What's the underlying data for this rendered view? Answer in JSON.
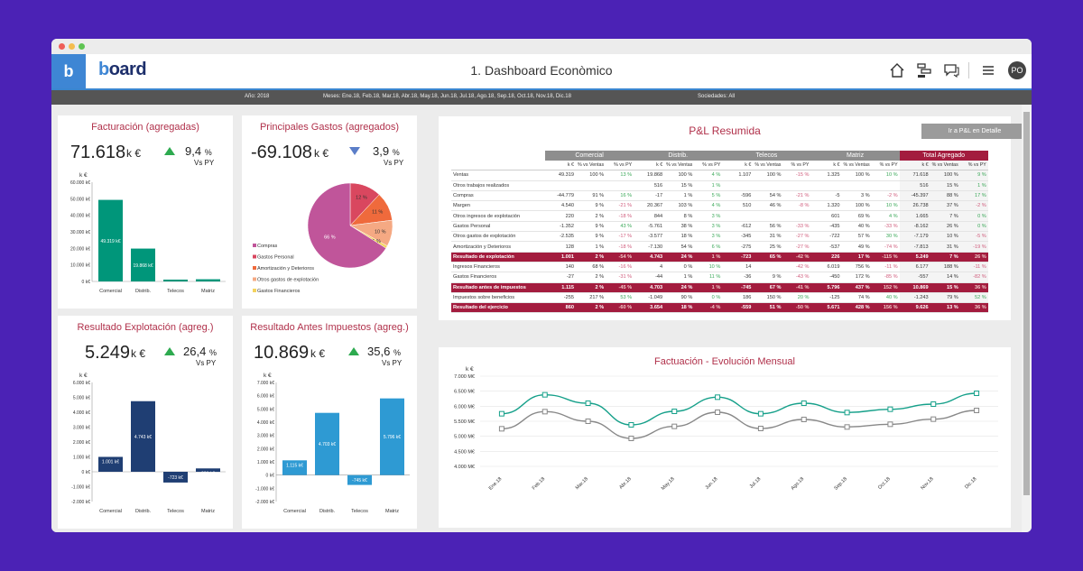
{
  "app": {
    "logo_letter": "b",
    "brand_prefix": "b",
    "brand_rest": "oard",
    "title": "1. Dashboard Econòmico",
    "user_initials": "PO"
  },
  "filters": {
    "year": "Año: 2018",
    "months": "Meses: Ene.18, Feb.18, Mar.18, Abr.18, May.18, Jun.18, Jul.18, Ago.18, Sep.18, Oct.18, Nov.18, Dic.18",
    "companies": "Sociedades: All"
  },
  "colors": {
    "accent": "#3e86d4",
    "title_red": "#b0304a",
    "teal": "#00967a",
    "navy": "#1f3e73",
    "sky": "#2e9ad3",
    "highlight_row": "#a31c3e"
  },
  "kpi1": {
    "title": "Facturación (agregadas)",
    "value": "71.618",
    "unit": "k €",
    "pct": "9,4",
    "pct_sym": "%",
    "vs": "Vs PY",
    "trend": "up"
  },
  "kpi2": {
    "title": "Principales Gastos (agregados)",
    "value": "-69.108",
    "unit": "k €",
    "pct": "3,9",
    "pct_sym": "%",
    "vs": "Vs PY",
    "trend": "down"
  },
  "kpi3": {
    "title": "Resultado Explotación (agreg.)",
    "value": "5.249",
    "unit": "k €",
    "pct": "26,4",
    "pct_sym": "%",
    "vs": "Vs PY",
    "trend": "up"
  },
  "kpi4": {
    "title": "Resultado Antes Impuestos (agreg.)",
    "value": "10.869",
    "unit": "k €",
    "pct": "35,6",
    "pct_sym": "%",
    "vs": "Vs PY",
    "trend": "up"
  },
  "chart_data": [
    {
      "type": "bar",
      "ylabel": "k €",
      "categories": [
        "Comercial",
        "Distrib.",
        "Telecos",
        "Matriz"
      ],
      "values": [
        49319,
        19868,
        1107,
        1325
      ],
      "value_labels": [
        "49.319 k€",
        "19.868 k€",
        "1.107 k€",
        "1.325 k€"
      ],
      "ylim": [
        0,
        60000
      ],
      "yticks": [
        "0 k€",
        "10.000 k€",
        "20.000 k€",
        "30.000 k€",
        "40.000 k€",
        "50.000 k€",
        "60.000 k€"
      ]
    },
    {
      "type": "pie",
      "slices": [
        {
          "label": "Compras",
          "value": 66,
          "text": "66 %",
          "color": "#c0559a"
        },
        {
          "label": "Gastos Personal",
          "value": 12,
          "text": "12 %",
          "color": "#d9475f"
        },
        {
          "label": "Amortización y Deterioros",
          "value": 11,
          "text": "11 %",
          "color": "#ef6a3c"
        },
        {
          "label": "Otros gastos de explotación",
          "value": 10,
          "text": "10 %",
          "color": "#f5a983"
        },
        {
          "label": "Gastos Financieros",
          "value": 1,
          "text": "1 %",
          "color": "#f4d35e"
        }
      ]
    },
    {
      "type": "bar",
      "ylabel": "k €",
      "categories": [
        "Comercial",
        "Distrib.",
        "Telecos",
        "Matriz"
      ],
      "values": [
        1001,
        4743,
        -723,
        226
      ],
      "value_labels": [
        "1.001 k€",
        "4.743 k€",
        "-723 k€",
        "226 k€"
      ],
      "ylim": [
        -2000,
        6000
      ],
      "yticks": [
        "-2.000 k€",
        "-1.000 k€",
        "0 k€",
        "1.000 k€",
        "2.000 k€",
        "3.000 k€",
        "4.000 k€",
        "5.000 k€",
        "6.000 k€"
      ]
    },
    {
      "type": "bar",
      "ylabel": "k €",
      "categories": [
        "Comercial",
        "Distrib.",
        "Telecos",
        "Matriz"
      ],
      "values": [
        1115,
        4703,
        -745,
        5796
      ],
      "value_labels": [
        "1.115 k€",
        "4.703 k€",
        "-745 k€",
        "5.796 k€"
      ],
      "ylim": [
        -2000,
        7000
      ],
      "yticks": [
        "-2.000 k€",
        "-1.000 k€",
        "0 k€",
        "1.000 k€",
        "2.000 k€",
        "3.000 k€",
        "4.000 k€",
        "5.000 k€",
        "6.000 k€",
        "7.000 k€"
      ]
    },
    {
      "type": "line",
      "title": "Factuación - Evolución Mensual",
      "ylabel": "k €",
      "x": [
        "Ene.18",
        "Feb.18",
        "Mar.18",
        "Abr.18",
        "May.18",
        "Jun.18",
        "Jul.18",
        "Ago.18",
        "Sep.18",
        "Oct.18",
        "Nov.18",
        "Dic.18"
      ],
      "ylim": [
        4000,
        7000
      ],
      "yticks": [
        "4.000 M€",
        "4.500 M€",
        "5.000 M€",
        "5.500 M€",
        "6.000 M€",
        "6.500 M€",
        "7.000 M€"
      ],
      "series": [
        {
          "values": [
            5750,
            6380,
            6100,
            5380,
            5830,
            6300,
            5750,
            6100,
            5790,
            5900,
            6070,
            6430
          ],
          "color": "#16a08a"
        },
        {
          "values": [
            5250,
            5820,
            5500,
            4930,
            5330,
            5800,
            5260,
            5560,
            5310,
            5400,
            5570,
            5860
          ],
          "color": "#888888"
        }
      ]
    }
  ],
  "pl": {
    "title": "P&L Resumida",
    "button": "Ir a P&L en Detalle",
    "groups": [
      "Comercial",
      "Distrib.",
      "Telecos",
      "Matriz",
      "Total Agregado"
    ],
    "subheaders": [
      "k €",
      "% vs Ventas",
      "% vs PY"
    ],
    "rows": [
      {
        "label": "Ventas",
        "cells": [
          "49.319",
          "100 %",
          "13 %",
          "19.868",
          "100 %",
          "4 %",
          "1.107",
          "100 %",
          "-15 %",
          "1.325",
          "100 %",
          "10 %",
          "71.618",
          "100 %",
          "9 %"
        ]
      },
      {
        "label": "Otros trabajos realizados",
        "cells": [
          "",
          "",
          "",
          "516",
          "15 %",
          "1 %",
          "",
          "",
          "",
          "",
          "",
          "",
          "516",
          "15 %",
          "1 %"
        ]
      },
      {
        "label": "Compras",
        "cells": [
          "-44.779",
          "91 %",
          "16 %",
          "-17",
          "1 %",
          "5 %",
          "-596",
          "54 %",
          "-21 %",
          "-5",
          "3 %",
          "-2 %",
          "-45.397",
          "88 %",
          "17 %"
        ]
      },
      {
        "label": "Margen",
        "cells": [
          "4.540",
          "9 %",
          "-21 %",
          "20.367",
          "103 %",
          "4 %",
          "510",
          "46 %",
          "-8 %",
          "1.320",
          "100 %",
          "10 %",
          "26.738",
          "37 %",
          "-2 %"
        ]
      },
      {
        "label": "Otros ingresos de explotación",
        "cells": [
          "220",
          "2 %",
          "-18 %",
          "844",
          "8 %",
          "3 %",
          "",
          "",
          "",
          "601",
          "69 %",
          "4 %",
          "1.665",
          "7 %",
          "0 %"
        ]
      },
      {
        "label": "Gastos Personal",
        "cells": [
          "-1.352",
          "9 %",
          "43 %",
          "-5.761",
          "38 %",
          "3 %",
          "-612",
          "56 %",
          "-33 %",
          "-435",
          "40 %",
          "-33 %",
          "-8.162",
          "26 %",
          "0 %"
        ]
      },
      {
        "label": "Otros gastos de explotación",
        "cells": [
          "-2.535",
          "9 %",
          "-17 %",
          "-3.577",
          "18 %",
          "3 %",
          "-345",
          "31 %",
          "-27 %",
          "-722",
          "57 %",
          "30 %",
          "-7.179",
          "10 %",
          "-5 %"
        ]
      },
      {
        "label": "Amortización y Deterioros",
        "cells": [
          "128",
          "1 %",
          "-18 %",
          "-7.130",
          "54 %",
          "6 %",
          "-275",
          "25 %",
          "-27 %",
          "-537",
          "49 %",
          "-74 %",
          "-7.813",
          "31 %",
          "-19 %"
        ]
      },
      {
        "label": "Resultado de explotación",
        "hl": true,
        "cells": [
          "1.001",
          "2 %",
          "-54 %",
          "4.743",
          "24 %",
          "1 %",
          "-723",
          "65 %",
          "-42 %",
          "226",
          "17 %",
          "-115 %",
          "5.249",
          "7 %",
          "26 %"
        ]
      },
      {
        "label": "Ingresos Financieros",
        "cells": [
          "140",
          "68 %",
          "-16 %",
          "4",
          "0 %",
          "10 %",
          "14",
          "",
          "-42 %",
          "6.019",
          "756 %",
          "-11 %",
          "6.177",
          "188 %",
          "-11 %"
        ]
      },
      {
        "label": "Gastos Financieros",
        "cells": [
          "-27",
          "2 %",
          "-31 %",
          "-44",
          "1 %",
          "11 %",
          "-36",
          "9 %",
          "-43 %",
          "-450",
          "172 %",
          "-85 %",
          "-557",
          "14 %",
          "-82 %"
        ]
      },
      {
        "label": "Resultado antes de impuestos",
        "hl": true,
        "cells": [
          "1.115",
          "2 %",
          "-45 %",
          "4.703",
          "24 %",
          "1 %",
          "-745",
          "67 %",
          "-41 %",
          "5.796",
          "437 %",
          "152 %",
          "10.869",
          "15 %",
          "36 %"
        ]
      },
      {
        "label": "Impuestos sobre beneficios",
        "cells": [
          "-255",
          "217 %",
          "53 %",
          "-1.049",
          "90 %",
          "0 %",
          "186",
          "150 %",
          "20 %",
          "-125",
          "74 %",
          "40 %",
          "-1.243",
          "79 %",
          "52 %"
        ]
      },
      {
        "label": "Resultado del ejercicio",
        "hl": true,
        "cells": [
          "860",
          "2 %",
          "-60 %",
          "3.654",
          "18 %",
          "-4 %",
          "-559",
          "51 %",
          "-50 %",
          "5.671",
          "428 %",
          "156 %",
          "9.626",
          "13 %",
          "36 %"
        ]
      }
    ]
  }
}
